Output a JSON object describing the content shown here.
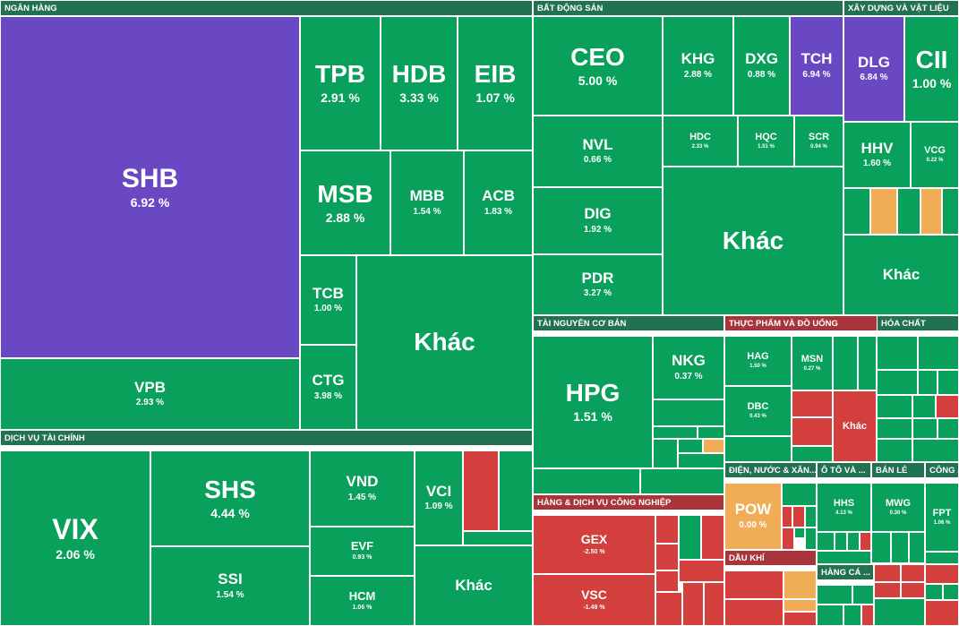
{
  "colors": {
    "up": "#08a05a",
    "down": "#d33f3c",
    "flat": "#f0ad56",
    "ceiling": "#6a48c4",
    "header_green": "#217250",
    "header_red": "#a9343a"
  },
  "chart_data": {
    "type": "treemap",
    "sectors": [
      {
        "name": "NGÂN HÀNG",
        "stocks": [
          {
            "symbol": "SHB",
            "change": "6.92 %"
          },
          {
            "symbol": "TPB",
            "change": "2.91 %"
          },
          {
            "symbol": "HDB",
            "change": "3.33 %"
          },
          {
            "symbol": "EIB",
            "change": "1.07 %"
          },
          {
            "symbol": "MSB",
            "change": "2.88 %"
          },
          {
            "symbol": "MBB",
            "change": "1.54 %"
          },
          {
            "symbol": "ACB",
            "change": "1.83 %"
          },
          {
            "symbol": "TCB",
            "change": "1.00 %"
          },
          {
            "symbol": "CTG",
            "change": "3.98 %"
          },
          {
            "symbol": "VPB",
            "change": "2.93 %"
          },
          {
            "symbol": "Khác",
            "change": ""
          }
        ]
      },
      {
        "name": "DỊCH VỤ TÀI CHÍNH",
        "stocks": [
          {
            "symbol": "VIX",
            "change": "2.06 %"
          },
          {
            "symbol": "SHS",
            "change": "4.44 %"
          },
          {
            "symbol": "SSI",
            "change": "1.54 %"
          },
          {
            "symbol": "VND",
            "change": "1.45 %"
          },
          {
            "symbol": "EVF",
            "change": "0.93 %"
          },
          {
            "symbol": "HCM",
            "change": "1.06 %"
          },
          {
            "symbol": "VCI",
            "change": "1.09 %"
          },
          {
            "symbol": "Khác",
            "change": ""
          }
        ]
      },
      {
        "name": "BẤT ĐỘNG SẢN",
        "stocks": [
          {
            "symbol": "CEO",
            "change": "5.00 %"
          },
          {
            "symbol": "KHG",
            "change": "2.88 %"
          },
          {
            "symbol": "DXG",
            "change": "0.88 %"
          },
          {
            "symbol": "TCH",
            "change": "6.94 %"
          },
          {
            "symbol": "NVL",
            "change": "0.66 %"
          },
          {
            "symbol": "HDC",
            "change": "2.33 %"
          },
          {
            "symbol": "HQC",
            "change": "1.51 %"
          },
          {
            "symbol": "SCR",
            "change": "0.94 %"
          },
          {
            "symbol": "DIG",
            "change": "1.92 %"
          },
          {
            "symbol": "PDR",
            "change": "3.27 %"
          },
          {
            "symbol": "Khác",
            "change": ""
          }
        ]
      },
      {
        "name": "XÂY DỰNG VÀ VẬT LIỆU",
        "stocks": [
          {
            "symbol": "DLG",
            "change": "6.84 %"
          },
          {
            "symbol": "CII",
            "change": "1.00 %"
          },
          {
            "symbol": "HHV",
            "change": "1.60 %"
          },
          {
            "symbol": "VCG",
            "change": "0.22 %"
          },
          {
            "symbol": "Khác",
            "change": ""
          }
        ]
      },
      {
        "name": "TÀI NGUYÊN CƠ BẢN",
        "stocks": [
          {
            "symbol": "HPG",
            "change": "1.51 %"
          },
          {
            "symbol": "NKG",
            "change": "0.37 %"
          }
        ]
      },
      {
        "name": "THỰC PHẨM VÀ ĐỒ UỐNG",
        "stocks": [
          {
            "symbol": "HAG",
            "change": "1.50 %"
          },
          {
            "symbol": "MSN",
            "change": "0.27 %"
          },
          {
            "symbol": "DBC",
            "change": "0.43 %"
          },
          {
            "symbol": "Khác",
            "change": ""
          }
        ]
      },
      {
        "name": "HÓA CHẤT",
        "stocks": []
      },
      {
        "name": "HÀNG & DỊCH VỤ CÔNG NGHIỆP",
        "stocks": [
          {
            "symbol": "GEX",
            "change": "-2.50 %"
          },
          {
            "symbol": "VSC",
            "change": "-1.49 %"
          }
        ]
      },
      {
        "name": "ĐIỆN, NƯỚC & XĂN...",
        "stocks": [
          {
            "symbol": "POW",
            "change": "0.00 %"
          }
        ]
      },
      {
        "name": "Ô TÔ VÀ ...",
        "stocks": [
          {
            "symbol": "HHS",
            "change": "4.13 %"
          }
        ]
      },
      {
        "name": "BÁN LẺ",
        "stocks": [
          {
            "symbol": "MWG",
            "change": "0.30 %"
          }
        ]
      },
      {
        "name": "CÔNG ...",
        "stocks": [
          {
            "symbol": "FPT",
            "change": "1.06 %"
          }
        ]
      },
      {
        "name": "DẦU KHÍ",
        "stocks": []
      },
      {
        "name": "HÀNG CÁ ...",
        "stocks": []
      }
    ]
  }
}
